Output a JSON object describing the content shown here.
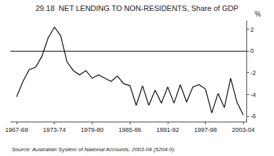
{
  "chart_data": {
    "type": "line",
    "title": "29.18  NET LENDING TO NON-RESIDENTS, Share of GDP",
    "ylabel": "%",
    "source": "Source: Australian System of National Accounts, 2003-04 (5204.0).",
    "x": [
      1968,
      1969,
      1970,
      1971,
      1972,
      1973,
      1974,
      1975,
      1976,
      1977,
      1978,
      1979,
      1980,
      1981,
      1982,
      1983,
      1984,
      1985,
      1986,
      1987,
      1988,
      1989,
      1990,
      1991,
      1992,
      1993,
      1994,
      1995,
      1996,
      1997,
      1998,
      1999,
      2000,
      2001,
      2002,
      2003,
      2004
    ],
    "values": [
      -4.2,
      -2.8,
      -1.7,
      -1.5,
      -0.5,
      1.2,
      2.2,
      1.4,
      -1.0,
      -1.8,
      -2.2,
      -1.8,
      -2.5,
      -2.2,
      -2.5,
      -2.8,
      -2.3,
      -3.0,
      -3.2,
      -5.0,
      -3.2,
      -5.0,
      -3.6,
      -4.8,
      -3.3,
      -4.8,
      -3.1,
      -4.7,
      -3.3,
      -3.1,
      -3.5,
      -5.7,
      -3.9,
      -5.2,
      -2.5,
      -4.7,
      -5.9
    ],
    "color": "#000000",
    "xlim": [
      1967.0,
      2004.5
    ],
    "xticks": [
      {
        "value": 1968,
        "label": "1967-68"
      },
      {
        "value": 1974,
        "label": "1973-74"
      },
      {
        "value": 1980,
        "label": "1979-80"
      },
      {
        "value": 1986,
        "label": "1985-86"
      },
      {
        "value": 1992,
        "label": "1991-92"
      },
      {
        "value": 1998,
        "label": "1997-98"
      },
      {
        "value": 2004,
        "label": "2003-04"
      }
    ],
    "ylim": [
      -6.5,
      2.8
    ],
    "yticks": [
      2,
      0,
      -2,
      -4,
      -6
    ],
    "grid": false
  }
}
